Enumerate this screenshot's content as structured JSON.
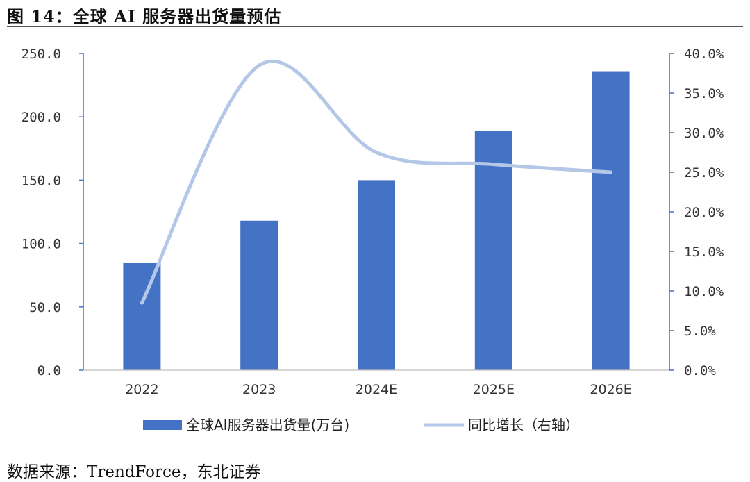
{
  "title": "图 14：全球 AI 服务器出货量预估",
  "source": "数据来源：TrendForce，东北证券",
  "colors": {
    "bar": "#4472C4",
    "line": "#B4C7E7",
    "axis": "#4472C4"
  },
  "chart_data": {
    "type": "bar",
    "categories": [
      "2022",
      "2023",
      "2024E",
      "2025E",
      "2026E"
    ],
    "series": [
      {
        "name": "全球AI服务器出货量(万台)",
        "type": "bar",
        "axis": "left",
        "values": [
          85,
          118,
          150,
          189,
          236
        ]
      },
      {
        "name": "同比增长（右轴）",
        "type": "line",
        "axis": "right",
        "values": [
          8.5,
          38.5,
          27.5,
          26.0,
          25.0
        ]
      }
    ],
    "y_left": {
      "min": 0,
      "max": 250,
      "ticks": [
        "0.0",
        "50.0",
        "100.0",
        "150.0",
        "200.0",
        "250.0"
      ]
    },
    "y_right": {
      "min": 0,
      "max": 40,
      "ticks": [
        "0.0%",
        "5.0%",
        "10.0%",
        "15.0%",
        "20.0%",
        "25.0%",
        "30.0%",
        "35.0%",
        "40.0%"
      ]
    },
    "legend_position": "bottom",
    "grid": false
  }
}
